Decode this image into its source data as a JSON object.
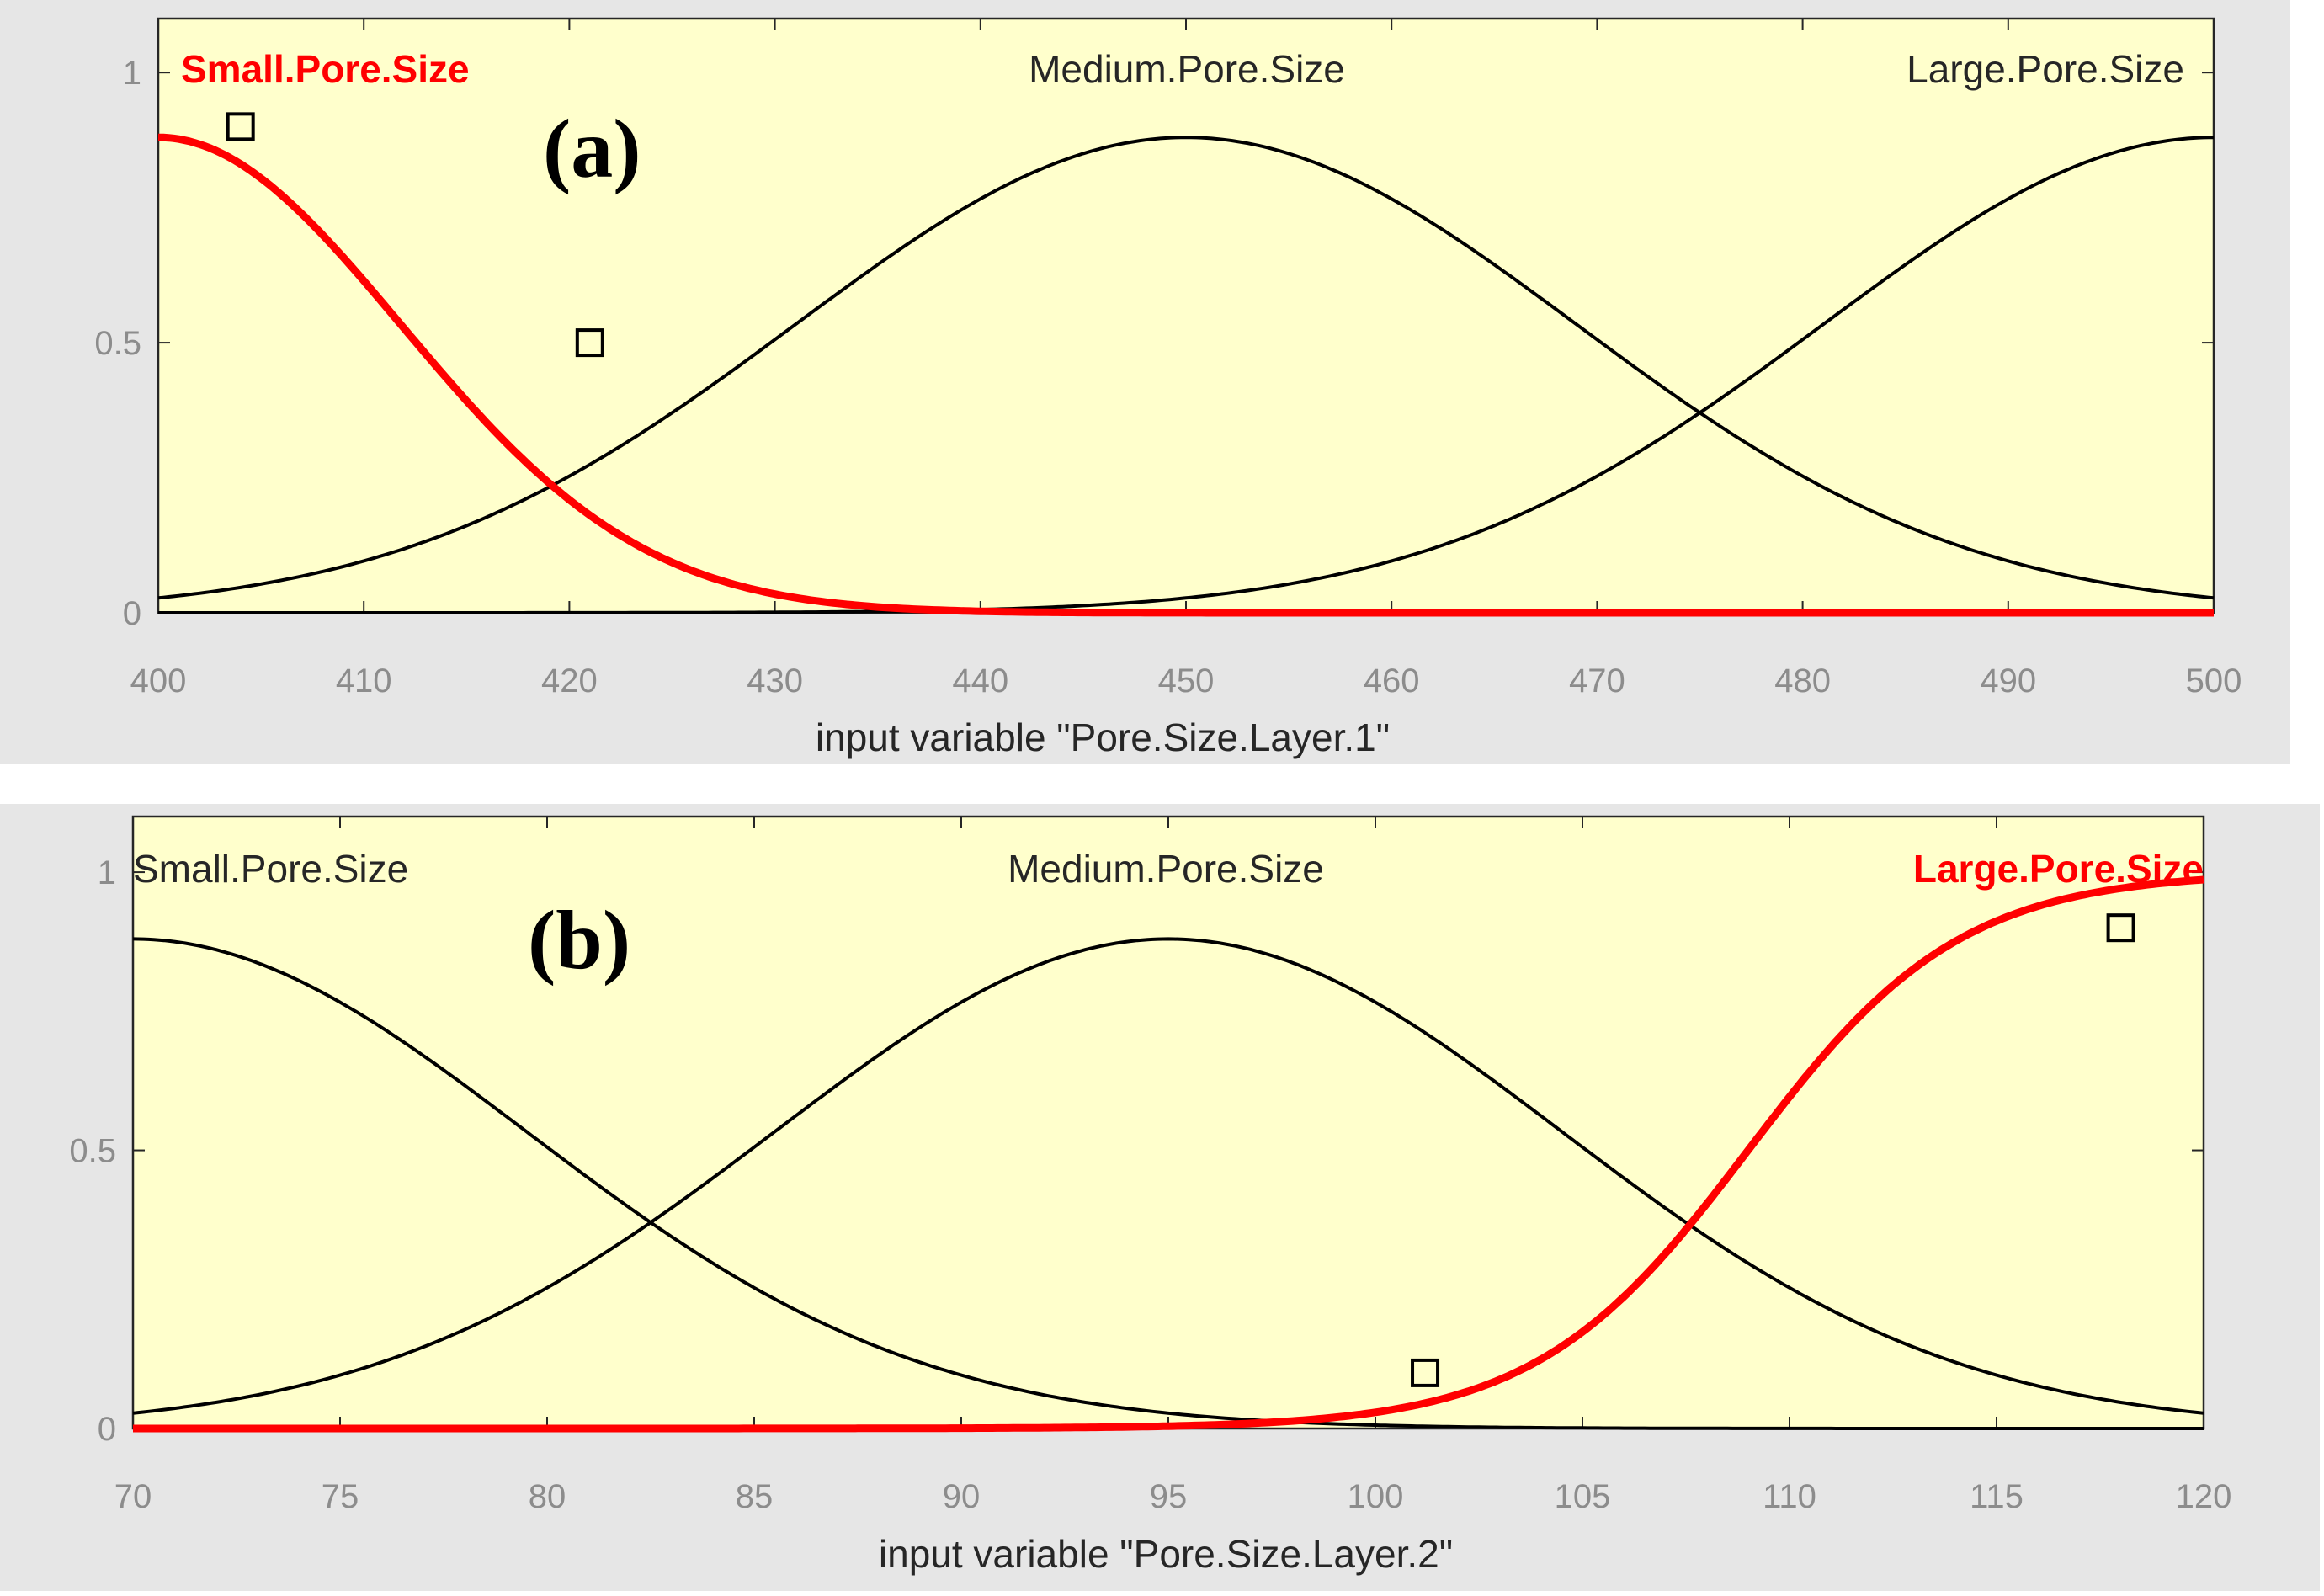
{
  "colors": {
    "figure_bg": "#e6e6e6",
    "axes_bg": "#ffffcc",
    "selected": "#ff0000",
    "unselected": "#000000",
    "tick_text": "#8c8c8c"
  },
  "chart_data": [
    {
      "type": "line",
      "panel_label": "(a)",
      "xlabel": "input variable \"Pore.Size.Layer.1\"",
      "xlim": [
        400,
        500
      ],
      "ylim": [
        0,
        1.1
      ],
      "xticks": [
        "400",
        "410",
        "420",
        "430",
        "440",
        "450",
        "460",
        "470",
        "480",
        "490",
        "500"
      ],
      "yticks": [
        "0",
        "0.5",
        "1"
      ],
      "grid": false,
      "membership_functions": [
        {
          "name": "Small.Pore.Size",
          "kind": "gaussian",
          "center": 400,
          "sigma": 11.8,
          "peak": 0.88,
          "selected": true
        },
        {
          "name": "Medium.Pore.Size",
          "kind": "gaussian",
          "center": 450,
          "sigma": 19,
          "peak": 0.88,
          "selected": false
        },
        {
          "name": "Large.Pore.Size",
          "kind": "gaussian",
          "center": 500,
          "sigma": 19,
          "peak": 0.88,
          "selected": false
        }
      ],
      "markers": [
        {
          "x": 404,
          "y": 0.9
        },
        {
          "x": 421,
          "y": 0.5
        }
      ]
    },
    {
      "type": "line",
      "panel_label": "(b)",
      "xlabel": "input variable \"Pore.Size.Layer.2\"",
      "xlim": [
        70,
        120
      ],
      "ylim": [
        0,
        1.1
      ],
      "xticks": [
        "70",
        "75",
        "80",
        "85",
        "90",
        "95",
        "100",
        "105",
        "110",
        "115",
        "120"
      ],
      "yticks": [
        "0",
        "0.5",
        "1"
      ],
      "grid": false,
      "membership_functions": [
        {
          "name": "Small.Pore.Size",
          "kind": "gaussian",
          "center": 70,
          "sigma": 9.5,
          "peak": 0.88,
          "selected": false
        },
        {
          "name": "Medium.Pore.Size",
          "kind": "gaussian",
          "center": 95,
          "sigma": 9.5,
          "peak": 0.88,
          "selected": false
        },
        {
          "name": "Large.Pore.Size",
          "kind": "sigmoid",
          "center": 109,
          "slope": 0.39,
          "selected": true
        }
      ],
      "markers": [
        {
          "x": 101.2,
          "y": 0.1
        },
        {
          "x": 118,
          "y": 0.9
        }
      ]
    }
  ]
}
